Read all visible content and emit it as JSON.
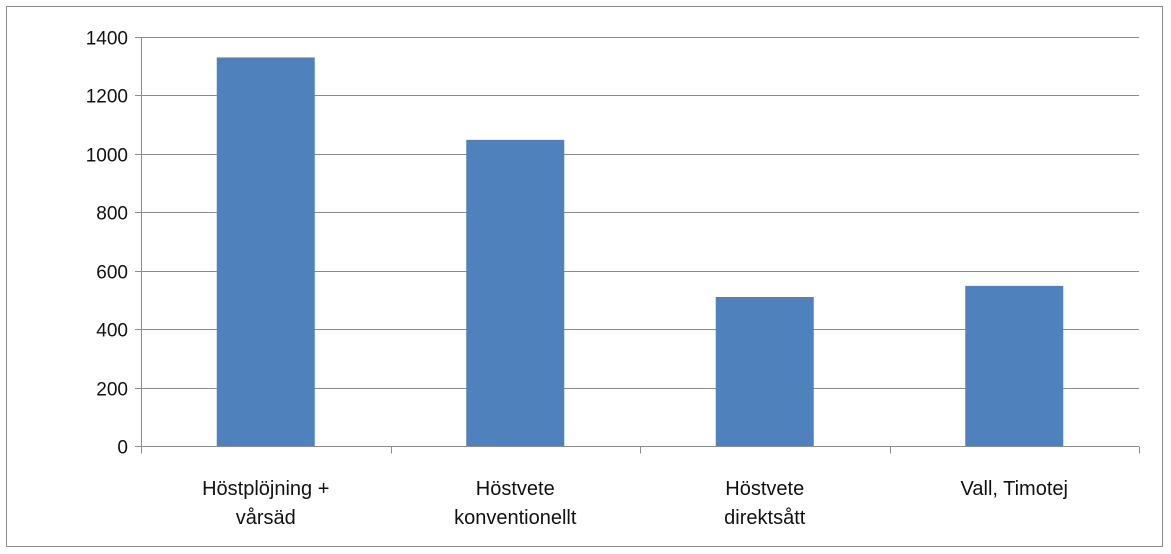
{
  "chart_data": {
    "type": "bar",
    "categories": [
      [
        "Höstplöjning +",
        "vårsäd"
      ],
      [
        "Höstvete",
        "konventionellt"
      ],
      [
        "Höstvete",
        "direktsått"
      ],
      [
        "Vall, Timotej"
      ]
    ],
    "values": [
      1330,
      1048,
      510,
      548
    ],
    "ylim": [
      0,
      1400
    ],
    "yticks": [
      0,
      200,
      400,
      600,
      800,
      1000,
      1200,
      1400
    ],
    "grid": true,
    "legend": "none",
    "colors": {
      "bar": "#4F81BD",
      "grid": "#8c8c8c",
      "axis": "#8c8c8c"
    }
  }
}
